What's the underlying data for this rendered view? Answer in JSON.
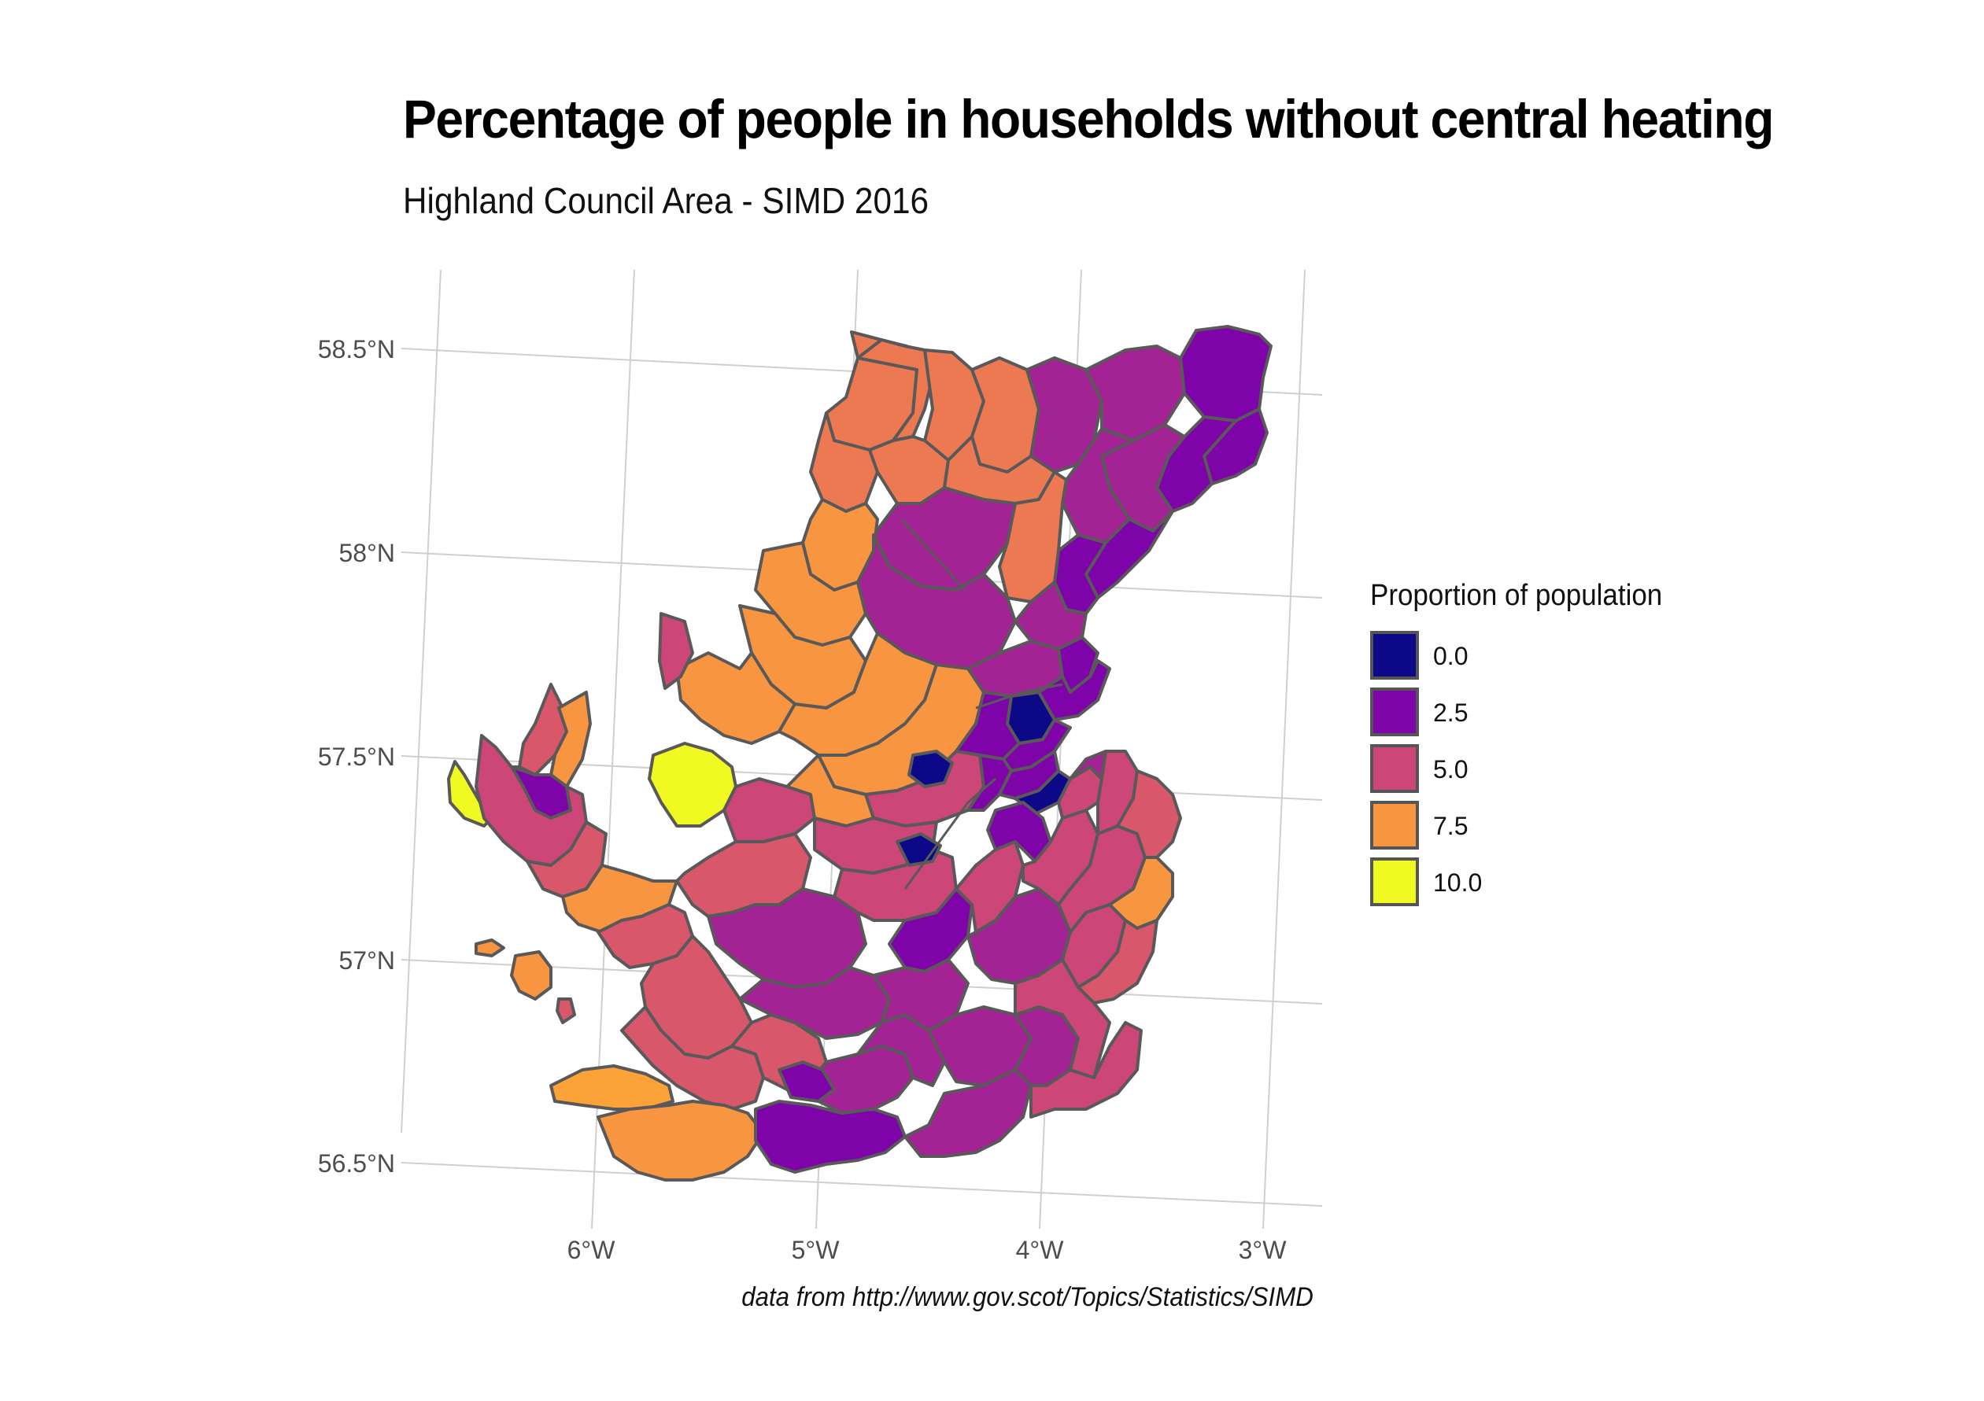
{
  "title": "Percentage of people in households without central heating",
  "subtitle": "Highland Council Area - SIMD 2016",
  "caption": "data from http://www.gov.scot/Topics/Statistics/SIMD",
  "axes": {
    "latitude_labels": [
      "58.5°N",
      "58°N",
      "57.5°N",
      "57°N",
      "56.5°N"
    ],
    "longitude_labels": [
      "6°W",
      "5°W",
      "4°W",
      "3°W"
    ]
  },
  "legend": {
    "title": "Proportion of population",
    "items": [
      {
        "label": "0.0",
        "color": "#0d0887"
      },
      {
        "label": "2.5",
        "color": "#7e03a8"
      },
      {
        "label": "5.0",
        "color": "#cc4778"
      },
      {
        "label": "7.5",
        "color": "#f89540"
      },
      {
        "label": "10.0",
        "color": "#f0f921"
      }
    ]
  },
  "colors": {
    "region_border": "#595959",
    "graticule": "#d0d0d0",
    "mid_purple": "#a32394",
    "mid_pink": "#d8576b",
    "mid_orange": "#ed7953",
    "dark_orange": "#fba238"
  }
}
